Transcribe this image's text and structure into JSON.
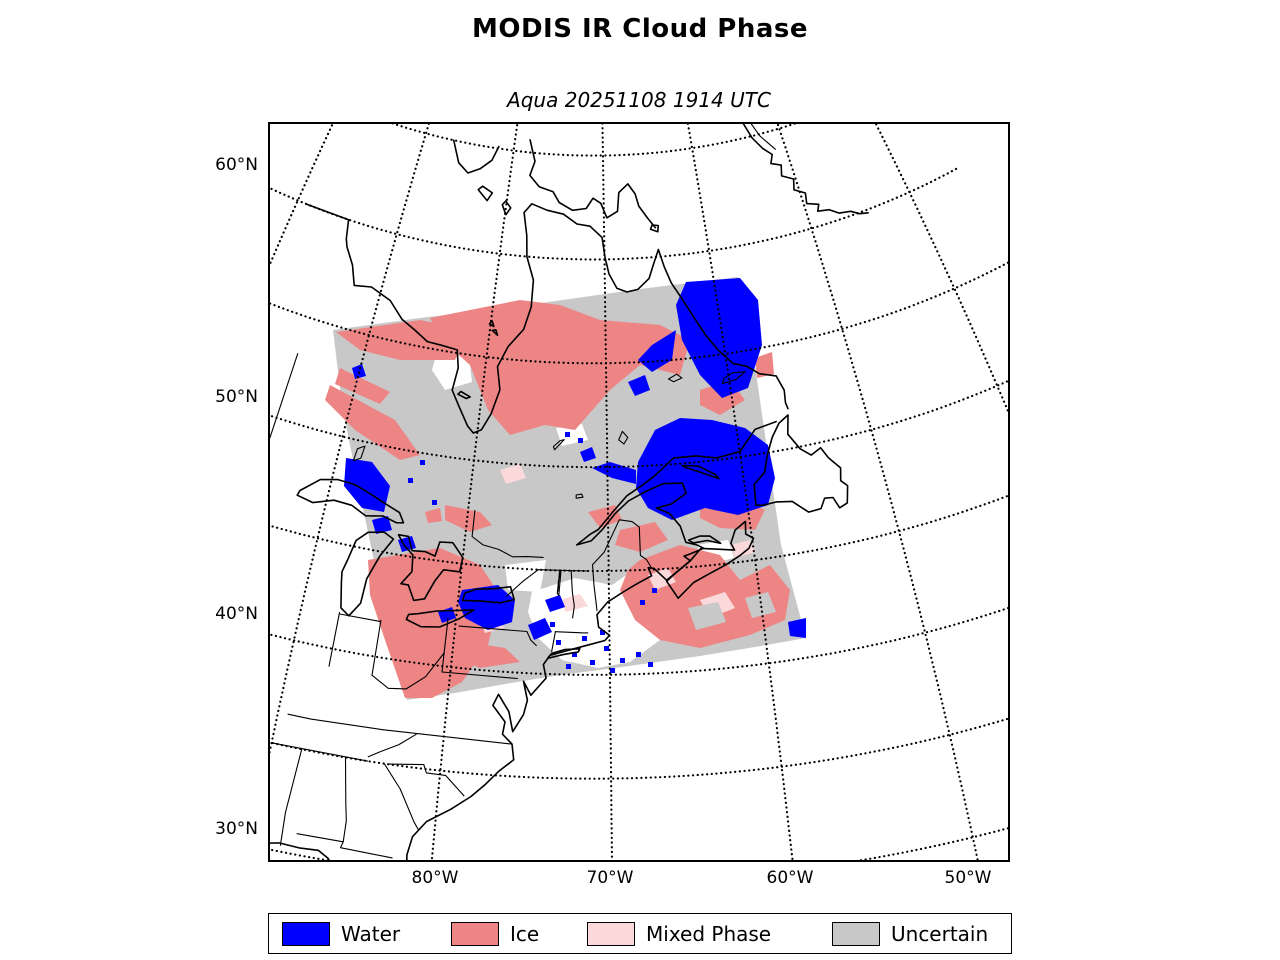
{
  "title": "MODIS IR Cloud Phase",
  "subtitle": "Aqua 20251108 1914 UTC",
  "axes": {
    "x_tick_labels": [
      "80°W",
      "70°W",
      "60°W",
      "50°W"
    ],
    "y_tick_labels": [
      "60°N",
      "50°N",
      "40°N",
      "30°N"
    ]
  },
  "legend": {
    "items": [
      {
        "label": "Water",
        "color": "#0000ff"
      },
      {
        "label": "Ice",
        "color": "#ee8585"
      },
      {
        "label": "Mixed Phase",
        "color": "#fbd8da"
      },
      {
        "label": "Uncertain",
        "color": "#c8c8c8"
      }
    ]
  },
  "map": {
    "kind": "satellite-swath-cloud-phase-map",
    "instrument": "MODIS IR",
    "platform": "Aqua",
    "datetime_label": "20251108 1914 UTC",
    "region": "Northeastern North America (Hudson Bay, Great Lakes, Gulf of St. Lawrence, US East Coast, Newfoundland, SW Greenland)",
    "graticule": {
      "style": "dotted",
      "parallels_deg_north": [
        30,
        35,
        40,
        45,
        50,
        55,
        60,
        65
      ],
      "meridians_deg_west": [
        100,
        90,
        80,
        70,
        60,
        50,
        40
      ]
    },
    "categories": [
      "Water",
      "Ice",
      "Mixed Phase",
      "Uncertain"
    ],
    "swath_description": "Rotated square swath, mostly Uncertain (gray) with Ice (salmon) bands NW and S/SE, large Water (blue) patches over the St. Lawrence/Quebec and Labrador coast, clear (white) gaps over New England"
  }
}
